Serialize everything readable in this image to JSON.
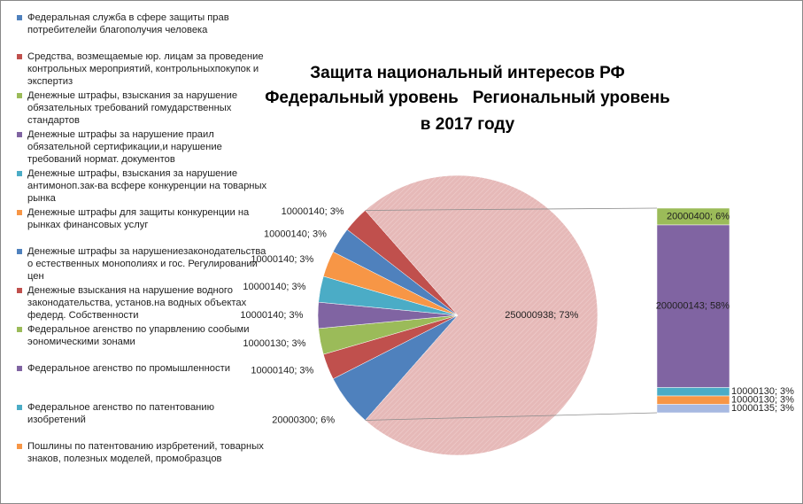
{
  "chart_data": {
    "type": "bar-of-pie",
    "title": [
      "Защита национальный интересов РФ",
      "Федеральный уровень   Региональный уровень",
      "в 2017 году"
    ],
    "pie": {
      "values": [
        6,
        3,
        3,
        3,
        3,
        3,
        3,
        3,
        73
      ],
      "value_labels": [
        "20000300; 6%",
        "10000140; 3%",
        "10000130; 3%",
        "10000140; 3%",
        "10000140; 3%",
        "10000140; 3%",
        "10000140; 3%",
        "10000140; 3%",
        "250000938; 73%"
      ],
      "colors": [
        "#4f81bd",
        "#c0504d",
        "#9bbb59",
        "#8064a2",
        "#4bacc6",
        "#f79646",
        "#4f81bd",
        "#c0504d",
        "#e6b9b8"
      ]
    },
    "bar": {
      "values": [
        6,
        58,
        3,
        3,
        3
      ],
      "value_labels": [
        "20000400; 6%",
        "200000143; 58%",
        "10000130; 3%",
        "10000130; 3%",
        "10000135; 3%"
      ],
      "colors": [
        "#9bbb59",
        "#8064a2",
        "#4bacc6",
        "#f79646",
        "#a7b9e1"
      ]
    },
    "legend": {
      "names": [
        "Федеральная служба в сфере защиты прав потребителейи благополучия человека",
        "Средства, возмещаемые юр. лицам за проведение контрольных мероприятий, контрольныхпокупок и экспертиз",
        "Денежные штрафы, взыскания за нарушение обязательных требований гомударственных стандартов",
        "Денежные штрафы за нарушение праил обязательной сертификации,и нарушение требований нормат. документов",
        "Денежные штрафы, взыскания за нарушение антимоноп.зак-ва всфере конкуренции на товарных рынка",
        "Денежные штрафы для защиты конкуренции на рынках финансовых услуг",
        "Денежные штрафы за нарушениезаконодательства о естественных монополиях и гос. Регулировании цен",
        "Денежные взыскания на нарушение водного законодательства, установ.на водных объектах федерд. Собственности",
        "Федеральное агенство по упарвлению сообыми эономическими зонами",
        "Федеральное агенство по промышленности",
        "Федеральное агенство по патентованию изобретений",
        "Пошлины по патентованию изрбретений, товарных знаков, полезных моделей, промобразцов"
      ],
      "colors": [
        "#4f81bd",
        "#c0504d",
        "#9bbb59",
        "#8064a2",
        "#4bacc6",
        "#f79646",
        "#4f81bd",
        "#c0504d",
        "#9bbb59",
        "#8064a2",
        "#4bacc6",
        "#f79646"
      ]
    }
  }
}
